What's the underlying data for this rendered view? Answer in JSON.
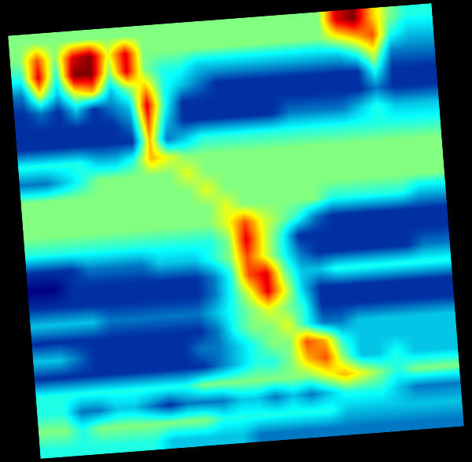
{
  "chart_data": {
    "type": "heatmap",
    "tick_labels": false,
    "zlim": [
      0,
      10
    ],
    "z": [
      [
        5,
        5,
        5,
        5,
        5,
        5,
        5,
        5,
        5,
        5,
        5,
        5,
        5,
        5,
        5,
        5,
        5,
        5,
        9,
        10,
        7,
        5,
        4,
        4
      ],
      [
        5,
        8,
        5,
        9,
        10,
        6,
        9,
        5,
        5,
        5,
        5,
        5,
        5,
        5,
        5,
        5,
        5,
        5,
        6,
        7,
        8,
        4,
        3,
        3
      ],
      [
        4,
        9,
        4,
        10,
        10,
        5,
        9,
        5,
        4,
        4,
        3,
        3,
        3,
        3,
        3,
        3,
        3,
        3,
        3,
        4,
        6,
        2,
        2,
        2
      ],
      [
        2,
        6,
        3,
        6,
        7,
        3,
        5,
        7,
        4,
        3,
        2,
        1,
        1,
        1,
        1,
        1,
        1,
        1,
        1,
        1,
        4,
        1,
        1,
        1
      ],
      [
        1,
        2,
        1,
        3,
        1,
        2,
        3,
        9,
        4,
        1,
        1,
        1,
        1,
        1,
        1,
        1,
        1,
        1,
        1,
        1,
        2,
        1,
        1,
        1
      ],
      [
        1,
        1,
        1,
        1,
        1,
        1,
        2,
        8,
        3,
        1,
        1,
        1,
        1,
        1,
        1,
        2,
        2,
        2,
        2,
        3,
        4,
        3,
        3,
        3
      ],
      [
        1,
        1,
        1,
        1,
        1,
        1,
        1,
        7,
        2,
        3,
        4,
        4,
        4,
        4,
        4,
        4,
        4,
        4,
        4,
        4,
        4,
        4,
        4,
        4
      ],
      [
        4,
        4,
        4,
        4,
        3,
        3,
        4,
        7,
        6,
        5,
        5,
        5,
        5,
        5,
        5,
        5,
        5,
        5,
        5,
        5,
        5,
        5,
        5,
        5
      ],
      [
        2,
        2,
        3,
        4,
        5,
        5,
        5,
        5,
        5,
        6,
        5,
        5,
        5,
        5,
        5,
        5,
        5,
        5,
        5,
        5,
        5,
        5,
        5,
        5
      ],
      [
        5,
        5,
        5,
        5,
        5,
        5,
        5,
        5,
        5,
        5,
        6,
        5,
        5,
        5,
        5,
        5,
        5,
        5,
        5,
        5,
        5,
        5,
        5,
        5
      ],
      [
        5,
        5,
        5,
        5,
        5,
        5,
        5,
        5,
        5,
        5,
        5,
        6,
        5,
        5,
        5,
        5,
        5,
        4,
        4,
        4,
        4,
        4,
        3,
        3
      ],
      [
        5,
        5,
        5,
        5,
        5,
        5,
        5,
        5,
        5,
        5,
        5,
        6,
        8,
        6,
        5,
        4,
        2,
        1,
        1,
        1,
        1,
        1,
        1,
        1
      ],
      [
        4,
        4,
        4,
        4,
        4,
        4,
        4,
        4,
        4,
        4,
        4,
        5,
        9,
        6,
        4,
        1,
        1,
        1,
        1,
        1,
        1,
        1,
        1,
        1
      ],
      [
        1,
        1,
        1,
        2,
        2,
        2,
        2,
        3,
        3,
        3,
        4,
        5,
        8,
        6,
        4,
        2,
        1,
        1,
        1,
        1,
        1,
        1,
        2,
        2
      ],
      [
        0,
        0,
        1,
        1,
        1,
        1,
        1,
        1,
        1,
        1,
        2,
        4,
        8,
        9,
        5,
        3,
        3,
        4,
        4,
        4,
        4,
        4,
        4,
        4
      ],
      [
        1,
        1,
        1,
        1,
        1,
        1,
        1,
        1,
        1,
        1,
        2,
        4,
        6,
        9,
        6,
        3,
        1,
        1,
        1,
        1,
        1,
        1,
        1,
        1
      ],
      [
        3,
        3,
        3,
        3,
        2,
        2,
        2,
        2,
        2,
        2,
        3,
        4,
        5,
        6,
        5,
        4,
        1,
        1,
        1,
        1,
        1,
        1,
        1,
        1
      ],
      [
        1,
        1,
        1,
        1,
        1,
        1,
        1,
        1,
        1,
        1,
        2,
        4,
        5,
        5,
        6,
        4,
        2,
        2,
        3,
        3,
        3,
        3,
        3,
        3
      ],
      [
        3,
        3,
        2,
        1,
        1,
        1,
        1,
        1,
        1,
        2,
        2,
        3,
        4,
        5,
        5,
        8,
        7,
        4,
        3,
        3,
        3,
        3,
        3,
        3
      ],
      [
        1,
        1,
        1,
        1,
        1,
        1,
        1,
        1,
        1,
        1,
        2,
        3,
        4,
        4,
        5,
        7,
        8,
        5,
        3,
        3,
        4,
        3,
        3,
        3
      ],
      [
        4,
        4,
        4,
        4,
        4,
        4,
        4,
        4,
        4,
        5,
        5,
        5,
        5,
        5,
        5,
        5,
        6,
        7,
        6,
        5,
        4,
        5,
        5,
        5
      ],
      [
        4,
        4,
        2,
        2,
        3,
        3,
        2,
        1,
        2,
        2,
        2,
        3,
        3,
        2,
        3,
        2,
        3,
        4,
        4,
        4,
        3,
        2,
        2,
        2
      ],
      [
        5,
        5,
        4,
        5,
        5,
        5,
        5,
        5,
        5,
        5,
        4,
        4,
        4,
        4,
        4,
        4,
        4,
        3,
        3,
        3,
        3,
        3,
        3,
        3
      ],
      [
        4,
        4,
        4,
        4,
        4,
        4,
        4,
        3,
        3,
        3,
        3,
        3,
        2,
        2,
        2,
        2,
        2,
        2,
        2,
        2,
        2,
        2,
        2,
        2
      ]
    ]
  }
}
